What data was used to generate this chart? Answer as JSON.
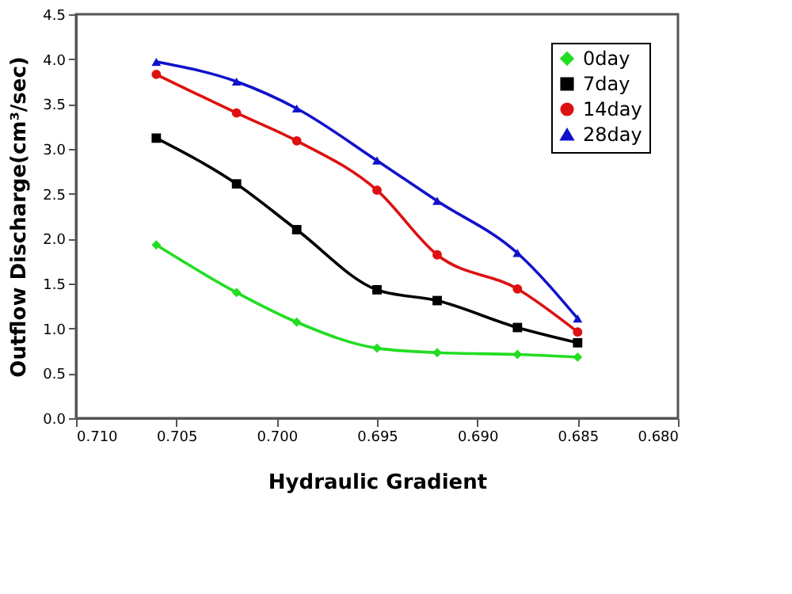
{
  "chart_data": {
    "type": "line",
    "xlabel": "Hydraulic Gradient",
    "ylabel": "Outflow Discharge(cm³/sec)",
    "x": [
      0.706,
      0.702,
      0.699,
      0.695,
      0.692,
      0.688,
      0.685
    ],
    "xlim": [
      0.71,
      0.68
    ],
    "xticks": [
      {
        "value": 0.71,
        "label": "0.710"
      },
      {
        "value": 0.705,
        "label": "0.705"
      },
      {
        "value": 0.7,
        "label": "0.700"
      },
      {
        "value": 0.695,
        "label": "0.695"
      },
      {
        "value": 0.69,
        "label": "0.690"
      },
      {
        "value": 0.685,
        "label": "0.685"
      },
      {
        "value": 0.68,
        "label": "0.680"
      }
    ],
    "ylim": [
      0,
      4.5
    ],
    "yticks": [
      {
        "value": 0,
        "label": "0.0"
      },
      {
        "value": 0.5,
        "label": "0.5"
      },
      {
        "value": 1,
        "label": "1.0"
      },
      {
        "value": 1.5,
        "label": "1.5"
      },
      {
        "value": 2,
        "label": "2.0"
      },
      {
        "value": 2.5,
        "label": "2.5"
      },
      {
        "value": 3,
        "label": "3.0"
      },
      {
        "value": 3.5,
        "label": "3.5"
      },
      {
        "value": 4,
        "label": "4.0"
      },
      {
        "value": 4.5,
        "label": "4.5"
      }
    ],
    "grid": false,
    "legend": "top right",
    "series": [
      {
        "name": "0day",
        "color": "#22dd22",
        "marker": "diamond",
        "values": [
          1.93,
          1.4,
          1.07,
          0.78,
          0.73,
          0.71,
          0.68
        ]
      },
      {
        "name": "7day",
        "color": "#000000",
        "marker": "square",
        "values": [
          3.12,
          2.61,
          2.1,
          1.43,
          1.31,
          1.01,
          0.84
        ]
      },
      {
        "name": "14day",
        "color": "#dd1111",
        "marker": "circle",
        "values": [
          3.83,
          3.4,
          3.09,
          2.54,
          1.82,
          1.44,
          0.96
        ]
      },
      {
        "name": "28day",
        "color": "#1111cc",
        "marker": "triangle",
        "values": [
          3.97,
          3.75,
          3.45,
          2.87,
          2.42,
          1.84,
          1.11
        ]
      }
    ]
  }
}
